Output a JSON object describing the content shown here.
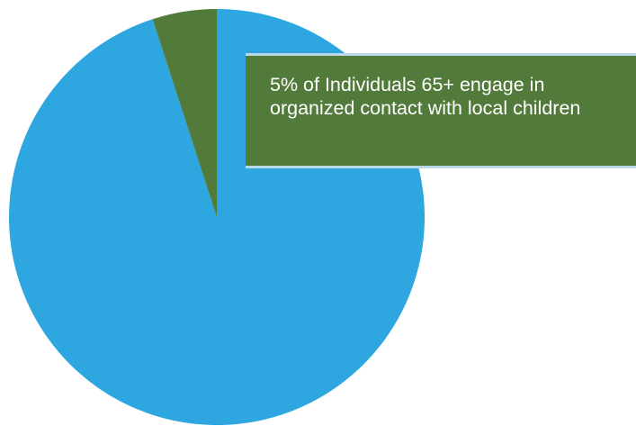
{
  "chart_data": {
    "type": "pie",
    "title": "",
    "slices": [
      {
        "value": 95
      },
      {
        "value": 5
      }
    ],
    "annotation": "5% of Individuals 65+ engage in organized contact with local children",
    "legend": "none"
  },
  "colors": {
    "major_slice": "#2ea6df",
    "minor_slice": "#527a3b",
    "callout_background": "#527a3b",
    "callout_border": "#bcd7ea"
  }
}
